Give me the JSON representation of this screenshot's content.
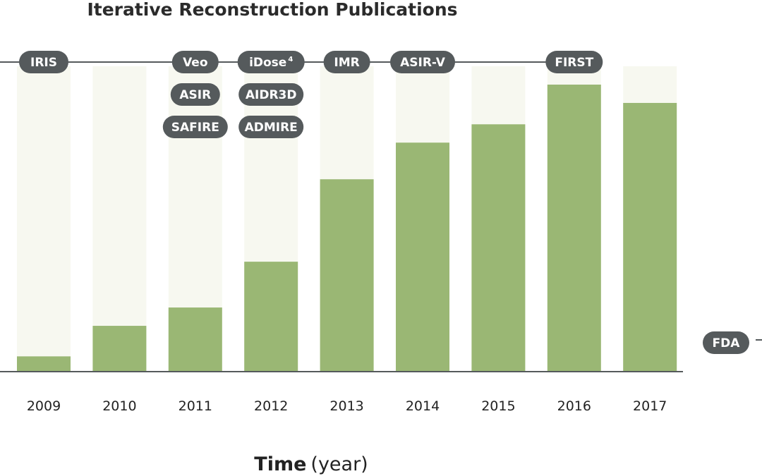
{
  "chart_data": {
    "type": "bar",
    "title": "Iterative Reconstruction Publications",
    "xlabel": "Time",
    "xlabel_unit": "(year)",
    "ylabel": "",
    "categories": [
      "2009",
      "2010",
      "2011",
      "2012",
      "2013",
      "2014",
      "2015",
      "2016",
      "2017"
    ],
    "values": [
      5,
      15,
      21,
      36,
      63,
      75,
      81,
      94,
      88
    ],
    "ylim": [
      0,
      100
    ],
    "grid": false,
    "legend": "none",
    "bar_color": "#9ab774",
    "bar_background_color": "#f7f8f0",
    "pill_color": "#555a5c",
    "annotations": [
      {
        "category": "2009",
        "labels": [
          {
            "text": "IRIS"
          }
        ]
      },
      {
        "category": "2011",
        "labels": [
          {
            "text": "Veo"
          },
          {
            "text": "ASIR"
          },
          {
            "text": "SAFIRE"
          }
        ]
      },
      {
        "category": "2012",
        "labels": [
          {
            "text": "iDose",
            "sup": "4"
          },
          {
            "text": "AIDR3D"
          },
          {
            "text": "ADMIRE"
          }
        ]
      },
      {
        "category": "2013",
        "labels": [
          {
            "text": "IMR"
          }
        ]
      },
      {
        "category": "2014",
        "labels": [
          {
            "text": "ASIR-V"
          }
        ]
      },
      {
        "category": "2016",
        "labels": [
          {
            "text": "FIRST"
          }
        ]
      }
    ],
    "side_label": {
      "text": "FDA"
    }
  }
}
